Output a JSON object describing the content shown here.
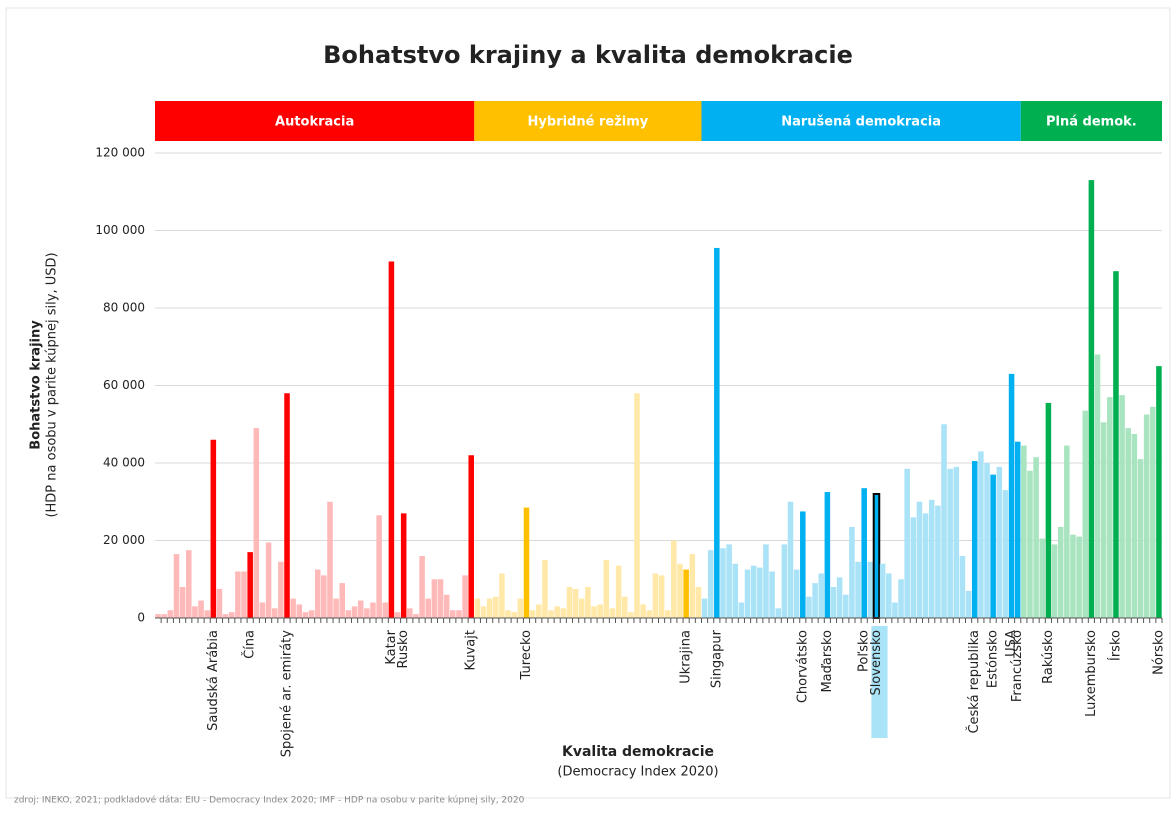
{
  "chart_data": {
    "type": "bar",
    "title": "Bohatstvo krajiny a kvalita demokracie",
    "x_label": "Kvalita demokracie",
    "x_sublabel": "(Democracy Index 2020)",
    "y_label": "Bohatstvo krajiny",
    "y_sublabel": "(HDP na osobu v parite kúpnej sily, USD)",
    "source": "zdroj: INEKO, 2021; podkladové dáta: EIU - Democracy Index 2020; IMF - HDP na osobu v parite kúpnej sily, 2020",
    "ylim": [
      0,
      120000
    ],
    "yticks": [
      0,
      {
        "value": 20000,
        "label": "20 000"
      },
      {
        "value": 40000,
        "label": "40 000"
      },
      {
        "value": 60000,
        "label": "60 000"
      },
      {
        "value": 80000,
        "label": "80 000"
      },
      {
        "value": 100000,
        "label": "100 000"
      },
      {
        "value": 120000,
        "label": "120 000"
      }
    ],
    "grid": true,
    "highlight": "Slovensko",
    "groups": [
      {
        "name": "Autokracia",
        "color": "#ff0000",
        "light_color": "#ffb9b9",
        "categories": [
          null,
          null,
          null,
          null,
          null,
          null,
          null,
          null,
          null,
          "Saudská Arábia",
          null,
          null,
          null,
          null,
          null,
          "Čína",
          null,
          null,
          null,
          null,
          null,
          "Spojené ar. emiráty",
          null,
          null,
          null,
          null,
          null,
          null,
          null,
          null,
          null,
          null,
          null,
          null,
          null,
          null,
          null,
          null,
          "Katar",
          null,
          "Rusko",
          null,
          null,
          null,
          null,
          null,
          null,
          null,
          null,
          null,
          null,
          "Kuvajt"
        ],
        "values": [
          1000,
          1000,
          2000,
          16500,
          8000,
          17500,
          3000,
          4500,
          2000,
          46000,
          7500,
          1000,
          1500,
          12000,
          12000,
          17000,
          49000,
          4000,
          19500,
          2500,
          14500,
          58000,
          5000,
          3500,
          1500,
          2000,
          12500,
          11000,
          30000,
          5000,
          9000,
          2000,
          3000,
          4500,
          2500,
          4000,
          26500,
          4000,
          92000,
          1500,
          27000,
          2500,
          1000,
          16000,
          5000,
          10000,
          10000,
          6000,
          2000,
          2000,
          11000,
          42000
        ]
      },
      {
        "name": "Hybridné režimy",
        "color": "#ffc000",
        "light_color": "#ffe8a8",
        "categories": [
          null,
          null,
          null,
          null,
          null,
          null,
          null,
          null,
          "Turecko",
          null,
          null,
          null,
          null,
          null,
          null,
          null,
          null,
          null,
          null,
          null,
          null,
          null,
          null,
          null,
          null,
          null,
          null,
          null,
          null,
          null,
          null,
          null,
          null,
          null,
          "Ukrajina",
          null,
          null
        ],
        "values": [
          5000,
          3000,
          5000,
          5500,
          11500,
          2000,
          1500,
          5000,
          28500,
          2000,
          3500,
          15000,
          2000,
          3000,
          2500,
          8000,
          7500,
          5000,
          8000,
          3000,
          3500,
          15000,
          2500,
          13500,
          5500,
          1500,
          58000,
          3500,
          2000,
          11500,
          11000,
          2000,
          20000,
          14000,
          12500,
          16500,
          8000
        ]
      },
      {
        "name": "Narušená demokracia",
        "color": "#00b0f0",
        "light_color": "#aae3f8",
        "categories": [
          null,
          null,
          "Singapur",
          null,
          null,
          null,
          null,
          null,
          null,
          null,
          null,
          null,
          null,
          null,
          null,
          null,
          "Chorvátsko",
          null,
          null,
          null,
          "Maďarsko",
          null,
          null,
          null,
          null,
          null,
          "Poľsko",
          null,
          "Slovensko",
          null,
          null,
          null,
          null,
          null,
          null,
          null,
          null,
          null,
          null,
          null,
          null,
          null,
          null,
          null,
          "Česká republika",
          null,
          null,
          "Estónsko",
          null,
          null,
          "USA",
          "Francúzsko"
        ],
        "values": [
          5000,
          17500,
          95500,
          18000,
          19000,
          14000,
          4000,
          12500,
          13500,
          13000,
          19000,
          12000,
          2500,
          19000,
          30000,
          12500,
          27500,
          5500,
          9000,
          11500,
          32500,
          8000,
          10500,
          6000,
          23500,
          14500,
          33500,
          14500,
          32000,
          14000,
          11500,
          4000,
          10000,
          38500,
          26000,
          30000,
          27000,
          30500,
          29000,
          50000,
          38500,
          39000,
          16000,
          7000,
          40500,
          43000,
          40000,
          37000,
          39000,
          33000,
          63000,
          45500
        ]
      },
      {
        "name": "Plná demok.",
        "color": "#00b050",
        "light_color": "#a9e4c0",
        "categories": [
          null,
          null,
          null,
          null,
          "Rakúsko",
          null,
          null,
          null,
          null,
          null,
          null,
          "Luxembursko",
          null,
          null,
          null,
          "Írsko",
          null,
          null,
          null,
          null,
          null,
          null,
          "Nórsko"
        ],
        "values": [
          44500,
          38000,
          41500,
          20500,
          55500,
          19000,
          23500,
          44500,
          21500,
          21000,
          53500,
          113000,
          68000,
          50500,
          57000,
          89500,
          57500,
          49000,
          47500,
          41000,
          52500,
          54500,
          65000
        ]
      }
    ]
  }
}
